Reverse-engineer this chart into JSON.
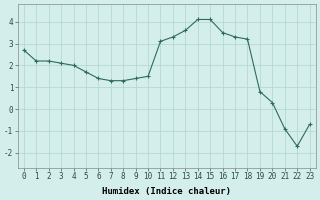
{
  "x": [
    0,
    1,
    2,
    3,
    4,
    5,
    6,
    7,
    8,
    9,
    10,
    11,
    12,
    13,
    14,
    15,
    16,
    17,
    18,
    19,
    20,
    21,
    22,
    23
  ],
  "y": [
    2.7,
    2.2,
    2.2,
    2.1,
    2.0,
    1.7,
    1.4,
    1.3,
    1.3,
    1.4,
    1.5,
    3.1,
    3.3,
    3.6,
    4.1,
    4.1,
    3.5,
    3.3,
    3.2,
    0.8,
    0.3,
    -0.9,
    -1.7,
    -0.7
  ],
  "line_color": "#2d6b5e",
  "marker": "+",
  "bg_color": "#d4eeec",
  "grid_color": "#afd4d0",
  "xlabel": "Humidex (Indice chaleur)",
  "xlim": [
    -0.5,
    23.5
  ],
  "ylim": [
    -2.7,
    4.8
  ],
  "yticks": [
    -2,
    -1,
    0,
    1,
    2,
    3,
    4
  ],
  "xticks": [
    0,
    1,
    2,
    3,
    4,
    5,
    6,
    7,
    8,
    9,
    10,
    11,
    12,
    13,
    14,
    15,
    16,
    17,
    18,
    19,
    20,
    21,
    22,
    23
  ],
  "label_fontsize": 6.5,
  "tick_fontsize": 5.5,
  "linewidth": 0.8,
  "markersize": 2.5,
  "markeredgewidth": 0.8
}
